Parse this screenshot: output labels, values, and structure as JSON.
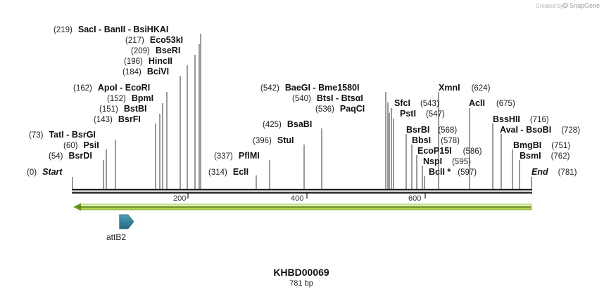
{
  "credit": {
    "created_by": "Created by",
    "brand": "SnapGene"
  },
  "sequence": {
    "name": "KHBD00069",
    "length_label": "781 bp",
    "length": 781
  },
  "ends": {
    "start_label": "Start",
    "start_pos": "(0)",
    "end_label": "End",
    "end_pos": "(781)"
  },
  "ruler": {
    "ticks": [
      "200",
      "400",
      "600"
    ]
  },
  "features": [
    {
      "name": "attB2",
      "start": 80,
      "end": 104,
      "color": "#2e7d96"
    }
  ],
  "enzymes": [
    {
      "name": "SacI",
      "pos": "(219)"
    },
    {
      "name": "BanII",
      "pos": ""
    },
    {
      "name": "BsiHKAI",
      "pos": ""
    },
    {
      "name": "Eco53kI",
      "pos": "(217)"
    },
    {
      "name": "BseRI",
      "pos": "(209)"
    },
    {
      "name": "HincII",
      "pos": "(196)"
    },
    {
      "name": "BciVI",
      "pos": "(184)"
    },
    {
      "name": "ApoI",
      "pos": "(162)"
    },
    {
      "name": "EcoRI",
      "pos": ""
    },
    {
      "name": "BpmI",
      "pos": "(152)"
    },
    {
      "name": "BstBI",
      "pos": "(151)"
    },
    {
      "name": "BsrFI",
      "pos": "(143)"
    },
    {
      "name": "TatI",
      "pos": "(73)"
    },
    {
      "name": "BsrGI",
      "pos": ""
    },
    {
      "name": "PsiI",
      "pos": "(60)"
    },
    {
      "name": "BsrDI",
      "pos": "(54)"
    },
    {
      "name": "PflMI",
      "pos": "(337)"
    },
    {
      "name": "EclI",
      "pos": "(314)"
    },
    {
      "name": "StuI",
      "pos": "(396)"
    },
    {
      "name": "BsaBI",
      "pos": "(425)"
    },
    {
      "name": "BaeGI",
      "pos": "(542)"
    },
    {
      "name": "Bme1580I",
      "pos": ""
    },
    {
      "name": "BtsI",
      "pos": "(540)"
    },
    {
      "name": "BtsαI",
      "pos": ""
    },
    {
      "name": "PaqCI",
      "pos": "(536)"
    },
    {
      "name": "SfcI",
      "pos": "(543)"
    },
    {
      "name": "PstI",
      "pos": "(547)"
    },
    {
      "name": "BsrBI",
      "pos": "(568)"
    },
    {
      "name": "BbsI",
      "pos": "(578)"
    },
    {
      "name": "EcoP15I",
      "pos": "(586)"
    },
    {
      "name": "NspI",
      "pos": "(595)"
    },
    {
      "name": "BclI *",
      "pos": "(597)"
    },
    {
      "name": "XmnI",
      "pos": "(624)"
    },
    {
      "name": "AclI",
      "pos": "(675)"
    },
    {
      "name": "BssHII",
      "pos": "(716)"
    },
    {
      "name": "AvaI",
      "pos": ""
    },
    {
      "name": "BsoBI",
      "pos": "(728)"
    },
    {
      "name": "BmgBI",
      "pos": "(751)"
    },
    {
      "name": "BsmI",
      "pos": "(762)"
    }
  ]
}
